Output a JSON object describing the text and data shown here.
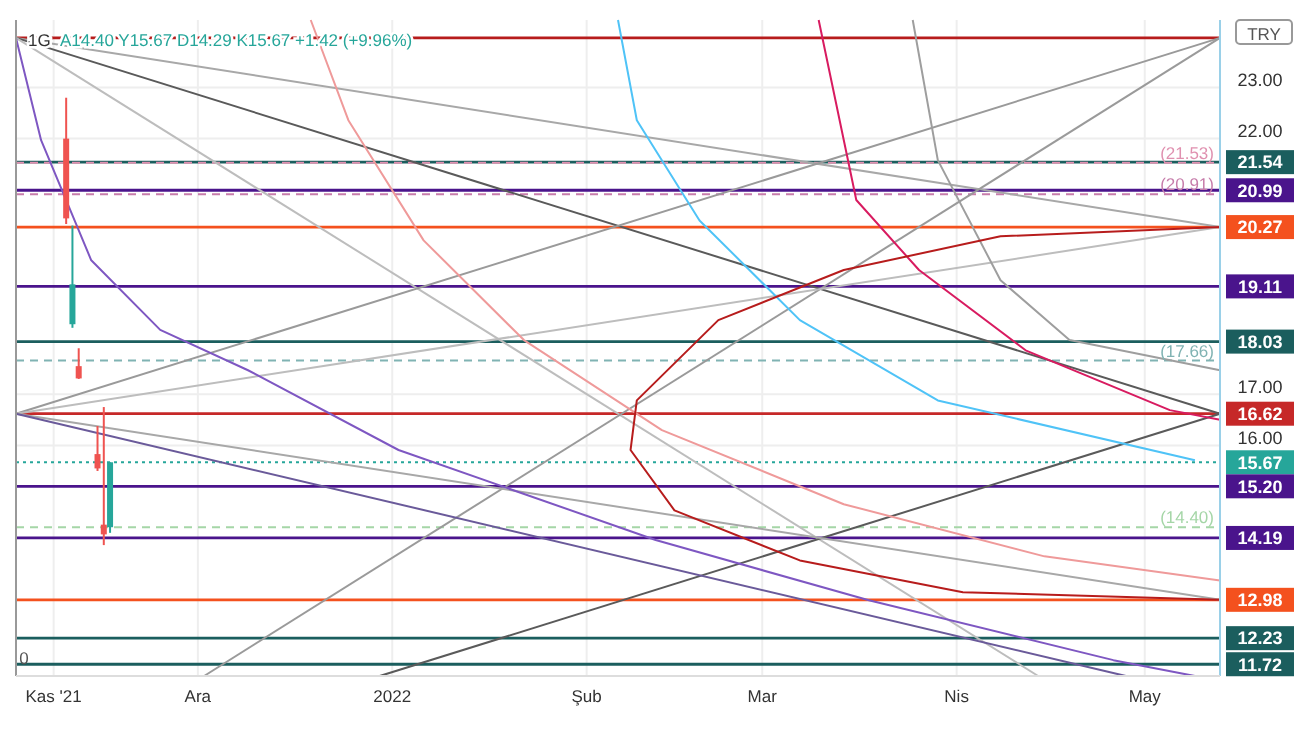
{
  "chart_data": {
    "type": "candlestick",
    "title": "1G",
    "subtitle": "A14.40  Y15.67  D14.29  K15.67  +1.42 (+9.96%)",
    "x": [
      "2021-11-10",
      "2021-11-11",
      "2021-11-12",
      "2021-11-15",
      "2021-11-16",
      "2021-11-17"
    ],
    "ohlc": [
      [
        22.0,
        22.8,
        20.33,
        20.44
      ],
      [
        18.37,
        20.3,
        18.3,
        19.15
      ],
      [
        17.55,
        17.9,
        17.3,
        17.31
      ],
      [
        15.83,
        16.38,
        15.5,
        15.55
      ],
      [
        14.45,
        16.75,
        14.05,
        14.26
      ],
      [
        14.4,
        15.67,
        14.29,
        15.67
      ]
    ],
    "colors": [
      "#ef5350",
      "#26a69a",
      "#ef5350",
      "#ef5350",
      "#ef5350",
      "#26a69a"
    ],
    "series": [
      {
        "type": "line",
        "color": "#a8a8a8",
        "x": [
          "2021-11-02",
          "2022-05-13"
        ],
        "values": [
          23.97,
          20.27
        ]
      },
      {
        "type": "line",
        "color": "#5a5a5a",
        "x": [
          "2021-11-02",
          "2022-05-13"
        ],
        "values": [
          23.97,
          16.62
        ]
      },
      {
        "type": "line",
        "color": "#bdbdbd",
        "x": [
          "2021-11-02",
          "2022-04-14"
        ],
        "values": [
          23.97,
          11.49
        ]
      },
      {
        "type": "line",
        "color": "#9a9a9a",
        "x": [
          "2021-11-02",
          "2022-05-13"
        ],
        "values": [
          16.62,
          23.97
        ]
      },
      {
        "type": "line",
        "color": "#9a9a9a",
        "x": [
          "2021-12-02",
          "2022-05-13"
        ],
        "values": [
          11.49,
          23.97
        ]
      },
      {
        "type": "line",
        "color": "#5a5a5a",
        "x": [
          "2021-12-30",
          "2022-05-13"
        ],
        "values": [
          11.49,
          16.62
        ]
      },
      {
        "type": "line",
        "color": "#bdbdbd",
        "x": [
          "2021-11-02",
          "2022-05-13"
        ],
        "values": [
          16.62,
          20.27
        ]
      },
      {
        "type": "line",
        "color": "#a8a8a8",
        "x": [
          "2021-11-02",
          "2022-05-13"
        ],
        "values": [
          16.62,
          12.98
        ]
      },
      {
        "type": "line",
        "color": "#6a5a9a",
        "x": [
          "2021-11-02",
          "2022-04-28"
        ],
        "values": [
          16.62,
          11.49
        ]
      },
      {
        "type": "line",
        "color": "#7e57c2",
        "x": [
          "2021-11-02",
          "2021-11-06",
          "2021-11-14",
          "2021-11-25",
          "2021-12-09",
          "2022-01-02",
          "2022-02-12",
          "2022-03-18",
          "2022-04-26",
          "2022-05-09"
        ],
        "values": [
          23.97,
          21.97,
          19.62,
          18.26,
          17.47,
          15.91,
          14.15,
          12.97,
          11.8,
          11.49
        ]
      },
      {
        "type": "line",
        "color": "#ef9a9a",
        "x": [
          "2021-12-19",
          "2021-12-25",
          "2022-01-06",
          "2022-01-22",
          "2022-02-13",
          "2022-03-14",
          "2022-04-15",
          "2022-05-13"
        ],
        "values": [
          24.32,
          22.36,
          20.01,
          18.06,
          16.3,
          14.85,
          13.83,
          13.36
        ]
      },
      {
        "type": "line",
        "color": "#4fc3f7",
        "x": [
          "2022-02-06",
          "2022-02-09",
          "2022-02-19",
          "2022-03-07",
          "2022-03-29",
          "2022-05-09"
        ],
        "values": [
          24.32,
          22.36,
          20.4,
          18.45,
          16.88,
          15.71
        ]
      },
      {
        "type": "line",
        "color": "#d81b60",
        "x": [
          "2022-03-10",
          "2022-03-16",
          "2022-03-26",
          "2022-04-12",
          "2022-05-05",
          "2022-05-13"
        ],
        "values": [
          24.32,
          20.8,
          19.43,
          17.86,
          16.69,
          16.5
        ]
      },
      {
        "type": "line",
        "color": "#9e9e9e",
        "x": [
          "2022-03-25",
          "2022-03-29",
          "2022-04-08",
          "2022-04-19",
          "2022-05-13"
        ],
        "values": [
          24.32,
          21.58,
          19.23,
          18.06,
          17.47
        ]
      },
      {
        "type": "line",
        "color": "#b71c1c",
        "x": [
          "2022-05-13",
          "2022-04-08",
          "2022-03-14",
          "2022-02-22",
          "2022-02-09",
          "2022-02-08",
          "2022-02-15",
          "2022-03-07",
          "2022-04-02",
          "2022-05-13"
        ],
        "values": [
          20.27,
          20.09,
          19.43,
          18.45,
          16.88,
          15.91,
          14.73,
          13.75,
          13.13,
          12.98
        ]
      }
    ],
    "xlim": [
      "2021-11-02",
      "2022-05-13"
    ],
    "xticks": [
      {
        "value": "2021-11-08",
        "label": "Kas '21"
      },
      {
        "value": "2021-12-01",
        "label": "Ara"
      },
      {
        "value": "2022-01-01",
        "label": "2022"
      },
      {
        "value": "2022-02-01",
        "label": "Şub"
      },
      {
        "value": "2022-03-01",
        "label": "Mar"
      },
      {
        "value": "2022-04-01",
        "label": "Nis"
      },
      {
        "value": "2022-05-01",
        "label": "May"
      }
    ],
    "ylim": [
      11.49,
      24.32
    ],
    "yticks": [
      {
        "value": 16,
        "label": "16.00"
      },
      {
        "value": 17,
        "label": "17.00"
      },
      {
        "value": 22,
        "label": "22.00"
      },
      {
        "value": 23,
        "label": "23.00"
      }
    ],
    "ref_lines": [
      {
        "axis": "y",
        "value": 23.97,
        "label": null,
        "color": "#b71c1c",
        "line_style": "solid"
      },
      {
        "axis": "y",
        "value": 21.54,
        "label": "21.54",
        "color": "#1b5e5e",
        "line_style": "solid"
      },
      {
        "axis": "y",
        "value": 21.53,
        "label": "(21.53)",
        "color": "#e091b0",
        "line_style": "dashed"
      },
      {
        "axis": "y",
        "value": 20.99,
        "label": "20.99",
        "color": "#4a148c",
        "line_style": "solid"
      },
      {
        "axis": "y",
        "value": 20.91,
        "label": "(20.91)",
        "color": "#c77dab",
        "line_style": "dashed"
      },
      {
        "axis": "y",
        "value": 20.27,
        "label": "20.27",
        "color": "#f4511e",
        "line_style": "solid"
      },
      {
        "axis": "y",
        "value": 19.11,
        "label": "19.11",
        "color": "#4a148c",
        "line_style": "solid"
      },
      {
        "axis": "y",
        "value": 18.03,
        "label": "18.03",
        "color": "#1b5e5e",
        "line_style": "solid"
      },
      {
        "axis": "y",
        "value": 17.66,
        "label": "(17.66)",
        "color": "#80b3b3",
        "line_style": "dashed"
      },
      {
        "axis": "y",
        "value": 16.62,
        "label": "16.62",
        "color": "#c62828",
        "line_style": "solid"
      },
      {
        "axis": "y",
        "value": 15.67,
        "label": "15.67",
        "color": "#26a69a",
        "line_style": "dotted"
      },
      {
        "axis": "y",
        "value": 15.2,
        "label": "15.20",
        "color": "#4a148c",
        "line_style": "solid"
      },
      {
        "axis": "y",
        "value": 14.4,
        "label": "(14.40)",
        "color": "#a5d6a7",
        "line_style": "dashed"
      },
      {
        "axis": "y",
        "value": 14.19,
        "label": "14.19",
        "color": "#4a148c",
        "line_style": "solid"
      },
      {
        "axis": "y",
        "value": 12.98,
        "label": "12.98",
        "color": "#f4511e",
        "line_style": "solid"
      },
      {
        "axis": "y",
        "value": 12.23,
        "label": "12.23",
        "color": "#1b5e5e",
        "line_style": "solid"
      },
      {
        "axis": "y",
        "value": 11.72,
        "label": "11.72",
        "color": "#1b5e5e",
        "line_style": "solid"
      }
    ],
    "annotations": [
      "TRY",
      "0"
    ],
    "grid": true
  }
}
